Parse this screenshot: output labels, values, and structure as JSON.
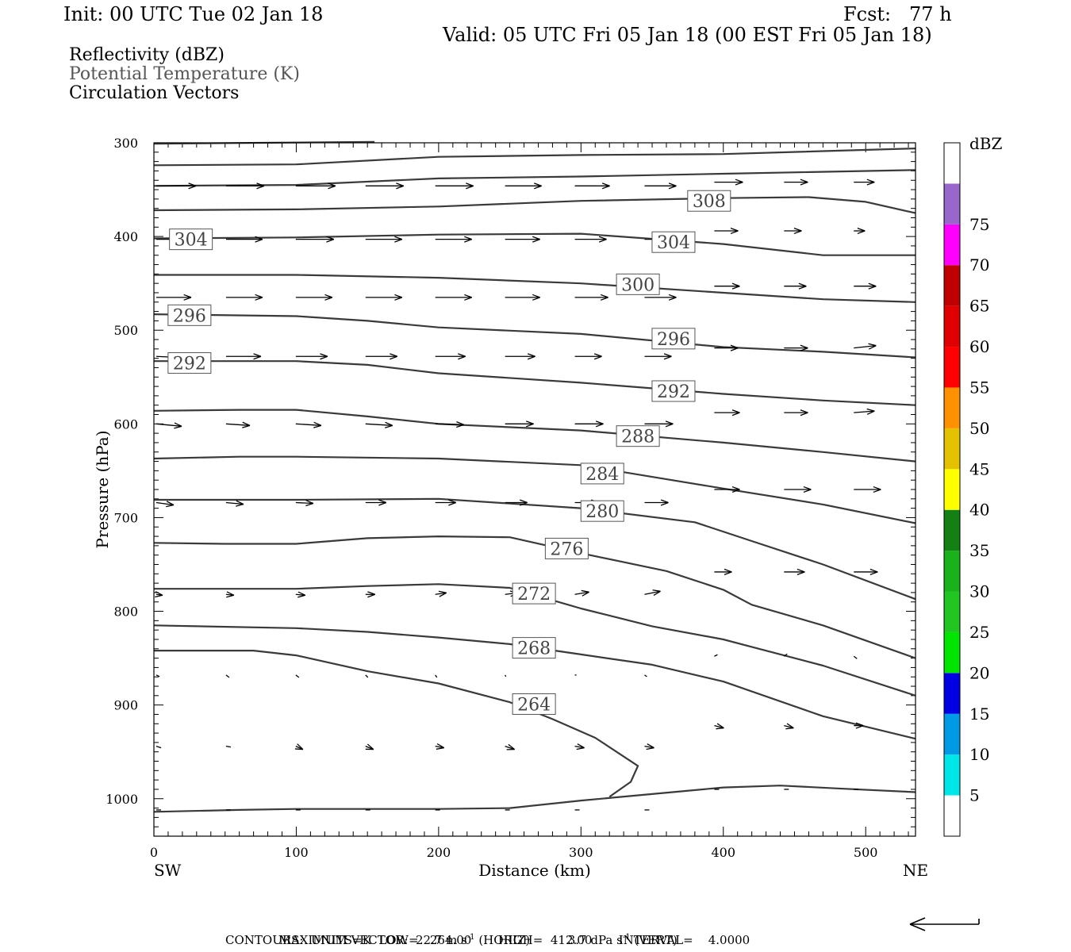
{
  "header": {
    "init": "Init: 00 UTC Tue 02 Jan 18",
    "fcst": "Fcst:   77 h",
    "valid": "Valid: 05 UTC Fri 05 Jan 18 (00 EST Fri 05 Jan 18)"
  },
  "fields": [
    "Reflectivity (dBZ)",
    "Potential Temperature (K)",
    "Circulation Vectors"
  ],
  "chart_data": {
    "type": "vertical cross-section",
    "xlabel": "Distance (km)",
    "ylabel": "Pressure (hPa)",
    "xlim": [
      0,
      535
    ],
    "ylim": [
      1040,
      300
    ],
    "x_ticks": [
      "0",
      "100",
      "200",
      "300",
      "400",
      "500"
    ],
    "y_ticks": [
      "300",
      "400",
      "500",
      "600",
      "700",
      "800",
      "900",
      "1000"
    ],
    "endpoints": {
      "left": "SW",
      "right": "NE"
    },
    "colorbar": {
      "title": "dBZ",
      "labels": [
        "5",
        "10",
        "15",
        "20",
        "25",
        "30",
        "35",
        "40",
        "45",
        "50",
        "55",
        "60",
        "65",
        "70",
        "75"
      ],
      "colors": [
        "#ffffff",
        "#00e5e5",
        "#0099e5",
        "#0000e5",
        "#00e500",
        "#22c622",
        "#1ab21a",
        "#128012",
        "#ffff00",
        "#e5c200",
        "#ff9000",
        "#ff0000",
        "#e00000",
        "#c00000",
        "#ff00ff",
        "#9966cc",
        "#ffffff"
      ]
    },
    "contours": [
      {
        "label": "",
        "points": [
          [
            0,
            301
          ],
          [
            75,
            300
          ],
          [
            155,
            299
          ]
        ]
      },
      {
        "label": "",
        "points": [
          [
            0,
            324
          ],
          [
            100,
            323
          ],
          [
            200,
            315
          ],
          [
            300,
            313
          ],
          [
            400,
            312
          ],
          [
            535,
            306
          ]
        ]
      },
      {
        "label": "",
        "points": [
          [
            0,
            346
          ],
          [
            100,
            345
          ],
          [
            200,
            338
          ],
          [
            300,
            336
          ],
          [
            400,
            333
          ],
          [
            535,
            329
          ]
        ]
      },
      {
        "label": "308",
        "label_at": [
          390,
          362
        ],
        "points": [
          [
            0,
            372
          ],
          [
            100,
            371
          ],
          [
            200,
            368
          ],
          [
            300,
            362
          ],
          [
            400,
            359
          ],
          [
            460,
            358
          ],
          [
            500,
            363
          ],
          [
            535,
            375
          ]
        ]
      },
      {
        "label": "",
        "points": [
          [
            0,
            402
          ],
          [
            100,
            401
          ],
          [
            200,
            398
          ],
          [
            300,
            397
          ],
          [
            400,
            408
          ],
          [
            470,
            420
          ],
          [
            535,
            420
          ]
        ]
      },
      {
        "label": "304",
        "label_at": [
          26,
          403
        ],
        "points": []
      },
      {
        "label": "304",
        "label_at": [
          365,
          406
        ],
        "points": []
      },
      {
        "label": "",
        "points": [
          [
            0,
            441
          ],
          [
            100,
            441
          ],
          [
            200,
            444
          ],
          [
            300,
            450
          ],
          [
            400,
            460
          ],
          [
            470,
            467
          ],
          [
            535,
            470
          ]
        ]
      },
      {
        "label": "300",
        "label_at": [
          340,
          451
        ],
        "points": []
      },
      {
        "label": "296",
        "label_at": [
          25,
          484
        ],
        "points": [
          [
            0,
            483
          ],
          [
            100,
            485
          ],
          [
            150,
            490
          ],
          [
            200,
            497
          ],
          [
            300,
            504
          ],
          [
            400,
            518
          ],
          [
            470,
            523
          ],
          [
            535,
            529
          ]
        ]
      },
      {
        "label": "296",
        "label_at": [
          365,
          509
        ],
        "points": []
      },
      {
        "label": "292",
        "label_at": [
          25,
          535
        ],
        "points": [
          [
            0,
            533
          ],
          [
            100,
            533
          ],
          [
            150,
            537
          ],
          [
            200,
            546
          ],
          [
            300,
            556
          ],
          [
            400,
            568
          ],
          [
            470,
            575
          ],
          [
            535,
            580
          ]
        ]
      },
      {
        "label": "292",
        "label_at": [
          365,
          565
        ],
        "points": []
      },
      {
        "label": "288",
        "label_at": [
          340,
          613
        ],
        "points": [
          [
            0,
            586
          ],
          [
            60,
            585
          ],
          [
            100,
            585
          ],
          [
            150,
            592
          ],
          [
            200,
            600
          ],
          [
            300,
            607
          ],
          [
            400,
            620
          ],
          [
            470,
            630
          ],
          [
            535,
            640
          ]
        ]
      },
      {
        "label": "284",
        "label_at": [
          315,
          653
        ],
        "points": [
          [
            0,
            637
          ],
          [
            60,
            635
          ],
          [
            100,
            635
          ],
          [
            200,
            637
          ],
          [
            300,
            644
          ],
          [
            400,
            669
          ],
          [
            470,
            686
          ],
          [
            535,
            706
          ]
        ]
      },
      {
        "label": "280",
        "label_at": [
          315,
          693
        ],
        "points": [
          [
            0,
            681
          ],
          [
            100,
            681
          ],
          [
            200,
            680
          ],
          [
            300,
            690
          ],
          [
            380,
            705
          ],
          [
            420,
            725
          ],
          [
            470,
            750
          ],
          [
            535,
            787
          ]
        ]
      },
      {
        "label": "276",
        "label_at": [
          290,
          733
        ],
        "points": [
          [
            0,
            727
          ],
          [
            50,
            728
          ],
          [
            100,
            728
          ],
          [
            150,
            722
          ],
          [
            200,
            720
          ],
          [
            250,
            721
          ],
          [
            300,
            738
          ],
          [
            360,
            757
          ],
          [
            400,
            777
          ],
          [
            420,
            793
          ],
          [
            470,
            815
          ],
          [
            535,
            850
          ]
        ]
      },
      {
        "label": "272",
        "label_at": [
          267,
          781
        ],
        "points": [
          [
            0,
            776
          ],
          [
            100,
            776
          ],
          [
            150,
            773
          ],
          [
            200,
            771
          ],
          [
            250,
            775
          ],
          [
            300,
            797
          ],
          [
            350,
            816
          ],
          [
            400,
            830
          ],
          [
            420,
            838
          ],
          [
            470,
            858
          ],
          [
            535,
            890
          ]
        ]
      },
      {
        "label": "268",
        "label_at": [
          267,
          839
        ],
        "points": [
          [
            0,
            815
          ],
          [
            100,
            818
          ],
          [
            150,
            822
          ],
          [
            200,
            828
          ],
          [
            250,
            835
          ],
          [
            300,
            846
          ],
          [
            350,
            857
          ],
          [
            400,
            875
          ],
          [
            470,
            912
          ],
          [
            535,
            936
          ]
        ]
      },
      {
        "label": "264",
        "label_at": [
          267,
          899
        ],
        "points": [
          [
            0,
            842
          ],
          [
            70,
            842
          ],
          [
            100,
            847
          ],
          [
            150,
            864
          ],
          [
            200,
            877
          ],
          [
            250,
            897
          ],
          [
            280,
            915
          ],
          [
            310,
            935
          ],
          [
            340,
            965
          ],
          [
            335,
            982
          ],
          [
            320,
            998
          ]
        ]
      },
      {
        "label": "",
        "points": [
          [
            0,
            1014
          ],
          [
            60,
            1012
          ],
          [
            100,
            1011
          ],
          [
            150,
            1011
          ],
          [
            200,
            1011
          ],
          [
            250,
            1010
          ],
          [
            300,
            1002
          ],
          [
            350,
            995
          ],
          [
            400,
            988
          ],
          [
            440,
            986
          ],
          [
            480,
            989
          ],
          [
            535,
            993
          ]
        ]
      }
    ],
    "vectors": [
      {
        "y": 346,
        "x": [
          0,
          49,
          98,
          147,
          196,
          245,
          294,
          343
        ],
        "dx": [
          50,
          48,
          50,
          48,
          48,
          46,
          44,
          40
        ],
        "dy": [
          0,
          0,
          0,
          0,
          0,
          0,
          0,
          0
        ]
      },
      {
        "y": 342,
        "x": [
          392,
          441,
          490
        ],
        "dx": [
          36,
          30,
          26
        ],
        "dy": [
          0,
          0,
          0
        ]
      },
      {
        "y": 403,
        "x": [
          0,
          49,
          98,
          147,
          196,
          245,
          294,
          343
        ],
        "dx": [
          48,
          46,
          48,
          46,
          46,
          44,
          40,
          36
        ],
        "dy": [
          0,
          0,
          0,
          0,
          0,
          0,
          0,
          0
        ]
      },
      {
        "y": 394,
        "x": [
          392,
          441,
          490
        ],
        "dx": [
          30,
          22,
          14
        ],
        "dy": [
          0,
          0,
          0
        ]
      },
      {
        "y": 465,
        "x": [
          0,
          49,
          98,
          147,
          196,
          245,
          294,
          343
        ],
        "dx": [
          44,
          46,
          46,
          46,
          46,
          44,
          42,
          40
        ],
        "dy": [
          0,
          0,
          0,
          0,
          0,
          0,
          0,
          0
        ]
      },
      {
        "y": 453,
        "x": [
          392,
          441,
          490
        ],
        "dx": [
          32,
          28,
          28
        ],
        "dy": [
          0,
          0,
          0
        ]
      },
      {
        "y": 528,
        "x": [
          0,
          49,
          98,
          147,
          196,
          245,
          294,
          343
        ],
        "dx": [
          44,
          44,
          40,
          40,
          38,
          38,
          34,
          34
        ],
        "dy": [
          2,
          0,
          0,
          0,
          0,
          0,
          0,
          0
        ]
      },
      {
        "y": 519,
        "x": [
          392,
          441,
          490
        ],
        "dx": [
          30,
          30,
          28
        ],
        "dy": [
          0,
          0,
          -3
        ]
      },
      {
        "y": 600,
        "x": [
          0,
          49,
          98,
          147,
          196,
          245,
          294,
          343
        ],
        "dx": [
          32,
          30,
          32,
          34,
          36,
          36,
          36,
          36
        ],
        "dy": [
          3,
          2,
          2,
          2,
          1,
          0,
          0,
          0
        ]
      },
      {
        "y": 588,
        "x": [
          392,
          441,
          490
        ],
        "dx": [
          32,
          30,
          26
        ],
        "dy": [
          0,
          0,
          -2
        ]
      },
      {
        "y": 684,
        "x": [
          0,
          49,
          98,
          147,
          196,
          245,
          294,
          343
        ],
        "dx": [
          22,
          22,
          22,
          26,
          26,
          28,
          30,
          30
        ],
        "dy": [
          3,
          2,
          1,
          0,
          0,
          0,
          0,
          0
        ]
      },
      {
        "y": 670,
        "x": [
          392,
          441,
          490
        ],
        "dx": [
          32,
          34,
          34
        ],
        "dy": [
          0,
          0,
          0
        ]
      },
      {
        "y": 782,
        "x": [
          0,
          49,
          98,
          147,
          196,
          245,
          294,
          343
        ],
        "dx": [
          8,
          10,
          12,
          12,
          14,
          16,
          18,
          20
        ],
        "dy": [
          1,
          1,
          1,
          0,
          -2,
          -2,
          -3,
          -4
        ]
      },
      {
        "y": 758,
        "x": [
          392,
          441,
          490
        ],
        "dx": [
          22,
          26,
          30
        ],
        "dy": [
          0,
          0,
          0
        ]
      },
      {
        "y": 868,
        "x": [
          0,
          49,
          98,
          147,
          196,
          245,
          294,
          343
        ],
        "dx": [
          4,
          4,
          4,
          3,
          2,
          1,
          2,
          3
        ],
        "dy": [
          2,
          3,
          3,
          3,
          3,
          2,
          0,
          2
        ]
      },
      {
        "y": 848,
        "x": [
          392,
          441,
          490
        ],
        "dx": [
          4,
          4,
          4
        ],
        "dy": [
          -2,
          -3,
          3
        ]
      },
      {
        "y": 944,
        "x": [
          0,
          49,
          98,
          147,
          196,
          245,
          294,
          343
        ],
        "dx": [
          6,
          6,
          9,
          10,
          11,
          12,
          12,
          12
        ],
        "dy": [
          2,
          1,
          4,
          4,
          2,
          4,
          2,
          2
        ]
      },
      {
        "y": 922,
        "x": [
          392,
          441,
          490
        ],
        "dx": [
          12,
          12,
          12
        ],
        "dy": [
          3,
          3,
          0
        ]
      },
      {
        "y": 1012,
        "x": [
          0,
          49,
          98,
          147,
          196,
          245,
          294,
          343
        ],
        "dx": [
          6,
          6,
          6,
          6,
          6,
          6,
          6,
          6
        ],
        "dy": [
          0,
          0,
          0,
          0,
          0,
          0,
          0,
          0
        ]
      },
      {
        "y": 990,
        "x": [
          392,
          441,
          490
        ],
        "dx": [
          6,
          6,
          6
        ],
        "dy": [
          0,
          0,
          0
        ]
      }
    ]
  },
  "footer": {
    "line1_label": "MAXIMUM VECTOR:",
    "horiz": "22.7 m s",
    "horiz_sup": "-1",
    "horiz_tag": "(HORIZ)",
    "vert": "3.7 dPa s",
    "vert_sup": "-1",
    "vert_tag": "(VERT)",
    "line2": "CONTOURS:  UNITS=K  LOW=   264.00       HIGH=  412.00       INTERVAL=    4.0000"
  }
}
